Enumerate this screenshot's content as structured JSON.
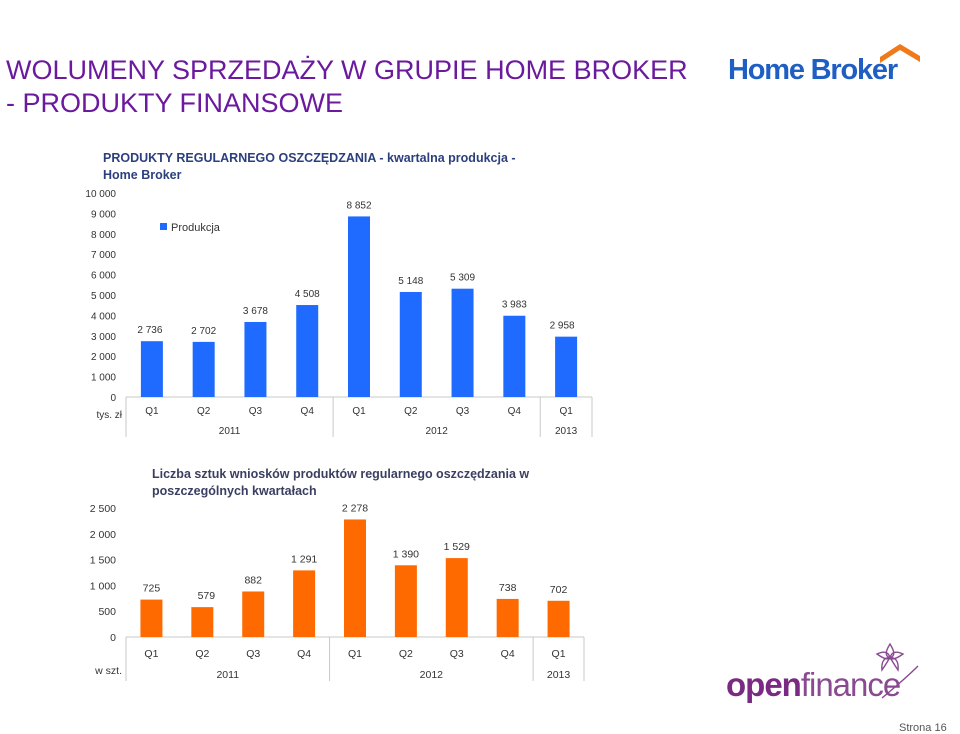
{
  "slide": {
    "title_line1": "WOLUMENY SPRZEDAŻY W GRUPIE HOME BROKER",
    "title_line2": "- PRODUKTY FINANSOWE",
    "page_label": "Strona 16"
  },
  "logos": {
    "home_broker": "Home Broker",
    "open": "open",
    "finance": "finance"
  },
  "colors": {
    "title": "#6b1a9e",
    "chart1_bar": "#1f6bff",
    "chart2_bar": "#ff6a00",
    "hb_blue": "#1f5fc4",
    "hb_orange": "#f07a1a"
  },
  "chart_data": [
    {
      "type": "bar",
      "title": "PRODUKTY REGULARNEGO OSZCZĘDZANIA - kwartalna produkcja - Home Broker",
      "unit_label": "tys. zł",
      "legend": [
        "Produkcja"
      ],
      "legend_position": "top-left",
      "categories": [
        "Q1",
        "Q2",
        "Q3",
        "Q4",
        "Q1",
        "Q2",
        "Q3",
        "Q4",
        "Q1"
      ],
      "years": [
        {
          "label": "2011",
          "span": 4
        },
        {
          "label": "2012",
          "span": 4
        },
        {
          "label": "2013",
          "span": 1
        }
      ],
      "series": [
        {
          "name": "Produkcja",
          "values": [
            2736,
            2702,
            3678,
            4508,
            8852,
            5148,
            5309,
            3983,
            2958
          ]
        }
      ],
      "value_labels": [
        "2 736",
        "2 702",
        "3 678",
        "4 508",
        "8 852",
        "5 148",
        "5 309",
        "3 983",
        "2 958"
      ],
      "y_ticks": [
        "0",
        "1 000",
        "2 000",
        "3 000",
        "4 000",
        "5 000",
        "6 000",
        "7 000",
        "8 000",
        "9 000",
        "10 000"
      ],
      "ylim": [
        0,
        10000
      ],
      "grid": false
    },
    {
      "type": "bar",
      "title": "Liczba sztuk wniosków produktów regularnego oszczędzania w poszczególnych kwartałach",
      "unit_label": "w szt.",
      "categories": [
        "Q1",
        "Q2",
        "Q3",
        "Q4",
        "Q1",
        "Q2",
        "Q3",
        "Q4",
        "Q1"
      ],
      "years": [
        {
          "label": "2011",
          "span": 4
        },
        {
          "label": "2012",
          "span": 4
        },
        {
          "label": "2013",
          "span": 1
        }
      ],
      "series": [
        {
          "values": [
            725,
            579,
            882,
            1291,
            2278,
            1390,
            1529,
            738,
            702
          ]
        }
      ],
      "value_labels": [
        "725",
        "579",
        "882",
        "1 291",
        "2 278",
        "1 390",
        "1 529",
        "738",
        "702"
      ],
      "y_ticks": [
        "0",
        "500",
        "1 000",
        "1 500",
        "2 000",
        "2 500"
      ],
      "ylim": [
        0,
        2500
      ],
      "grid": false
    }
  ]
}
